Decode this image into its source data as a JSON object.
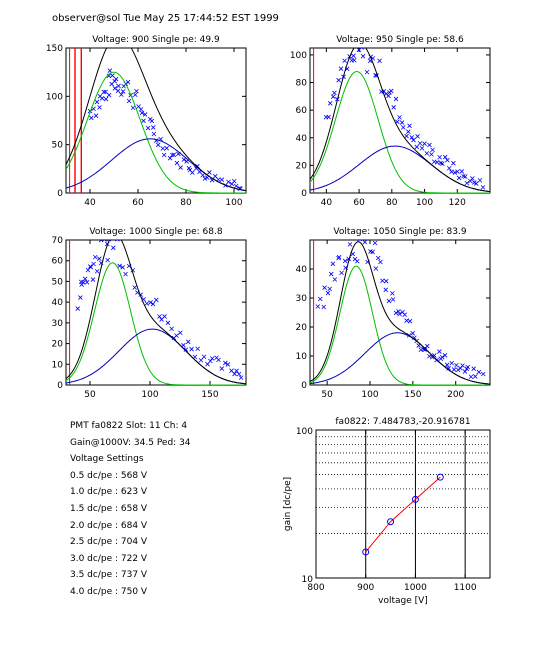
{
  "header": {
    "text": "observer@sol  Tue May 25 17:44:52 EST 1999"
  },
  "colors": {
    "data": "#0000ff",
    "total_fit": "#000000",
    "spe_fit": "#00c000",
    "multi_fit": "#0000c0",
    "pedestal": "#ff0000",
    "gain_line": "#ff0000",
    "gain_points": "#0000ff"
  },
  "chart_data": [
    {
      "type": "scatter",
      "title": "Voltage: 900  Single pe: 49.9",
      "xlim": [
        30,
        105
      ],
      "ylim": [
        0,
        150
      ],
      "xticks": [
        40,
        60,
        80,
        100
      ],
      "yticks": [
        0,
        50,
        100,
        150
      ],
      "voltage": 900,
      "single_pe": 49.9,
      "fit": {
        "g1": [
          125,
          49.9,
          11
        ],
        "g2": [
          56,
          65,
          16
        ]
      },
      "scatter_samples": [
        [
          40,
          85
        ],
        [
          43,
          92
        ],
        [
          46,
          100
        ],
        [
          48,
          112
        ],
        [
          50,
          118
        ],
        [
          52,
          115
        ],
        [
          55,
          110
        ],
        [
          58,
          100
        ],
        [
          61,
          88
        ],
        [
          64,
          72
        ],
        [
          67,
          60
        ],
        [
          70,
          50
        ],
        [
          74,
          40
        ],
        [
          78,
          33
        ],
        [
          82,
          28
        ],
        [
          86,
          22
        ],
        [
          90,
          18
        ],
        [
          95,
          14
        ],
        [
          100,
          10
        ],
        [
          104,
          8
        ]
      ]
    },
    {
      "type": "scatter",
      "title": "Voltage: 950  Single pe: 58.6",
      "xlim": [
        30,
        140
      ],
      "ylim": [
        0,
        105
      ],
      "xticks": [
        40,
        60,
        80,
        100,
        120
      ],
      "yticks": [
        0,
        20,
        40,
        60,
        80,
        100
      ],
      "voltage": 950,
      "single_pe": 58.6,
      "fit": {
        "g1": [
          88,
          58.6,
          13
        ],
        "g2": [
          34,
          82,
          22
        ]
      },
      "scatter_samples": [
        [
          40,
          60
        ],
        [
          45,
          72
        ],
        [
          50,
          85
        ],
        [
          55,
          95
        ],
        [
          60,
          100
        ],
        [
          65,
          98
        ],
        [
          70,
          92
        ],
        [
          75,
          80
        ],
        [
          80,
          68
        ],
        [
          85,
          55
        ],
        [
          90,
          45
        ],
        [
          95,
          38
        ],
        [
          100,
          33
        ],
        [
          105,
          28
        ],
        [
          110,
          24
        ],
        [
          115,
          20
        ],
        [
          120,
          15
        ],
        [
          125,
          11
        ],
        [
          130,
          8
        ],
        [
          138,
          5
        ]
      ]
    },
    {
      "type": "scatter",
      "title": "Voltage: 1000  Single pe: 68.8",
      "xlim": [
        30,
        180
      ],
      "ylim": [
        0,
        70
      ],
      "xticks": [
        50,
        100,
        150
      ],
      "yticks": [
        0,
        10,
        20,
        30,
        40,
        50,
        60,
        70
      ],
      "voltage": 1000,
      "single_pe": 68.8,
      "fit": {
        "g1": [
          59,
          68.8,
          15
        ],
        "g2": [
          27,
          102,
          28
        ]
      },
      "scatter_samples": [
        [
          40,
          42
        ],
        [
          45,
          50
        ],
        [
          50,
          56
        ],
        [
          55,
          60
        ],
        [
          60,
          64
        ],
        [
          65,
          68
        ],
        [
          70,
          70
        ],
        [
          80,
          60
        ],
        [
          90,
          50
        ],
        [
          100,
          42
        ],
        [
          110,
          32
        ],
        [
          120,
          26
        ],
        [
          130,
          20
        ],
        [
          140,
          16
        ],
        [
          150,
          12
        ],
        [
          160,
          9
        ],
        [
          170,
          7
        ],
        [
          178,
          5
        ]
      ]
    },
    {
      "type": "scatter",
      "title": "Voltage: 1050  Single pe: 83.9",
      "xlim": [
        30,
        240
      ],
      "ylim": [
        0,
        50
      ],
      "xticks": [
        50,
        100,
        150,
        200
      ],
      "yticks": [
        0,
        10,
        20,
        30,
        40
      ],
      "voltage": 1050,
      "single_pe": 83.9,
      "fit": {
        "g1": [
          41,
          83.9,
          19
        ],
        "g2": [
          18,
          132,
          38
        ]
      },
      "scatter_samples": [
        [
          40,
          28
        ],
        [
          50,
          34
        ],
        [
          60,
          40
        ],
        [
          70,
          45
        ],
        [
          80,
          48
        ],
        [
          90,
          48
        ],
        [
          100,
          46
        ],
        [
          110,
          42
        ],
        [
          120,
          32
        ],
        [
          130,
          26
        ],
        [
          140,
          22
        ],
        [
          150,
          18
        ],
        [
          160,
          14
        ],
        [
          170,
          12
        ],
        [
          180,
          10
        ],
        [
          190,
          8
        ],
        [
          200,
          6
        ],
        [
          210,
          5
        ],
        [
          220,
          4
        ],
        [
          235,
          3
        ]
      ]
    },
    {
      "type": "line",
      "title": "fa0822: 7.484783,-20.916781",
      "xlabel": "voltage [V]",
      "ylabel": "gain [dc/pe]",
      "xlim": [
        800,
        1150
      ],
      "ylim": [
        10,
        100
      ],
      "yscale": "log",
      "xticks": [
        800,
        900,
        1000,
        1100
      ],
      "yticks": [
        10,
        100
      ],
      "x": [
        900,
        950,
        1000,
        1050
      ],
      "y": [
        15,
        24,
        34,
        48
      ]
    }
  ],
  "info": {
    "lines": [
      "PMT fa0822 Slot: 11 Ch: 4",
      "Gain@1000V: 34.5 Ped: 34",
      "Voltage Settings",
      "0.5 dc/pe : 568 V",
      "1.0 dc/pe : 623 V",
      "1.5 dc/pe : 658 V",
      "2.0 dc/pe : 684 V",
      "2.5 dc/pe : 704 V",
      "3.0 dc/pe : 722 V",
      "3.5 dc/pe : 737 V",
      "4.0 dc/pe : 750 V"
    ]
  }
}
